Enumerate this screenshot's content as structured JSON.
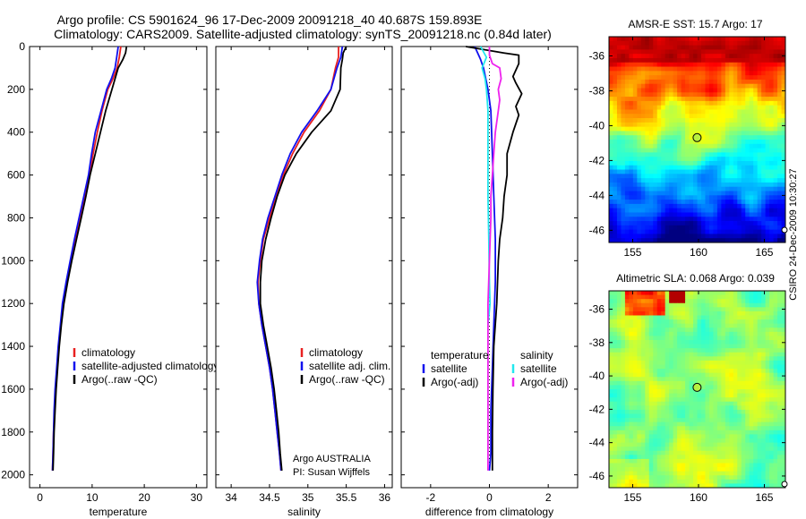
{
  "header": {
    "line1": "Argo profile: CS 5901624_96 17-Dec-2009 20091218_40 40.687S 159.893E",
    "line2": "Climatology: CARS2009. Satellite-adjusted climatology: synTS_20091218.nc (0.84d later)"
  },
  "side_label": "CSIRO 24-Dec-2009 10:30:27",
  "credits": {
    "line1": "Argo AUSTRALIA",
    "line2": "PI: Susan Wijffels"
  },
  "colors": {
    "climatology": "#e82020",
    "satellite": "#1010ee",
    "argo": "#000000",
    "sat_salinity": "#22e8ee",
    "argo_salinity": "#ee22ee"
  },
  "chart_data": [
    {
      "type": "line",
      "xlabel": "temperature",
      "xlim": [
        -2,
        32
      ],
      "ylim": [
        0,
        2060
      ],
      "xticks": [
        0,
        10,
        20,
        30
      ],
      "yticks": [
        0,
        200,
        400,
        600,
        800,
        1000,
        1200,
        1400,
        1600,
        1800,
        2000
      ],
      "legend_placement": "lower-right",
      "series": [
        {
          "name": "climatology",
          "color": "#e82020",
          "points": [
            [
              15.5,
              0
            ],
            [
              15.2,
              50
            ],
            [
              14.8,
              100
            ],
            [
              14.0,
              150
            ],
            [
              13.0,
              200
            ],
            [
              11.9,
              300
            ],
            [
              11.0,
              400
            ],
            [
              10.2,
              500
            ],
            [
              9.5,
              600
            ],
            [
              8.6,
              700
            ],
            [
              7.7,
              800
            ],
            [
              6.8,
              900
            ],
            [
              6.0,
              1000
            ],
            [
              5.2,
              1100
            ],
            [
              4.5,
              1200
            ],
            [
              4.0,
              1300
            ],
            [
              3.6,
              1400
            ],
            [
              3.3,
              1500
            ],
            [
              3.0,
              1600
            ],
            [
              2.8,
              1700
            ],
            [
              2.6,
              1800
            ],
            [
              2.5,
              1900
            ],
            [
              2.4,
              1980
            ]
          ]
        },
        {
          "name": "satellite-adjusted climatology",
          "color": "#1010ee",
          "points": [
            [
              15.0,
              0
            ],
            [
              14.7,
              50
            ],
            [
              14.4,
              100
            ],
            [
              13.7,
              150
            ],
            [
              12.8,
              200
            ],
            [
              11.7,
              300
            ],
            [
              10.6,
              400
            ],
            [
              9.9,
              500
            ],
            [
              9.3,
              600
            ],
            [
              8.4,
              700
            ],
            [
              7.5,
              800
            ],
            [
              6.6,
              900
            ],
            [
              5.8,
              1000
            ],
            [
              5.0,
              1100
            ],
            [
              4.3,
              1200
            ],
            [
              3.9,
              1300
            ],
            [
              3.5,
              1400
            ],
            [
              3.2,
              1500
            ],
            [
              2.9,
              1600
            ],
            [
              2.7,
              1700
            ],
            [
              2.6,
              1800
            ],
            [
              2.5,
              1900
            ],
            [
              2.4,
              1980
            ]
          ]
        },
        {
          "name": "Argo(..raw -QC)",
          "color": "#000000",
          "points": [
            [
              16.6,
              0
            ],
            [
              16.4,
              30
            ],
            [
              15.9,
              60
            ],
            [
              15.0,
              100
            ],
            [
              14.4,
              150
            ],
            [
              13.8,
              200
            ],
            [
              12.6,
              300
            ],
            [
              11.6,
              400
            ],
            [
              10.6,
              500
            ],
            [
              9.6,
              600
            ],
            [
              8.8,
              700
            ],
            [
              7.9,
              800
            ],
            [
              7.0,
              900
            ],
            [
              6.1,
              1000
            ],
            [
              5.3,
              1100
            ],
            [
              4.6,
              1200
            ],
            [
              4.1,
              1300
            ],
            [
              3.7,
              1400
            ],
            [
              3.4,
              1500
            ],
            [
              3.1,
              1600
            ],
            [
              2.9,
              1700
            ],
            [
              2.7,
              1800
            ],
            [
              2.6,
              1900
            ],
            [
              2.5,
              1980
            ]
          ]
        }
      ]
    },
    {
      "type": "line",
      "xlabel": "salinity",
      "xlim": [
        33.8,
        36.1
      ],
      "ylim": [
        0,
        2060
      ],
      "xticks": [
        34,
        34.5,
        35,
        35.5,
        36
      ],
      "legend_placement": "lower-right",
      "series": [
        {
          "name": "climatology",
          "color": "#e82020",
          "points": [
            [
              35.4,
              0
            ],
            [
              35.4,
              50
            ],
            [
              35.36,
              100
            ],
            [
              35.3,
              200
            ],
            [
              35.15,
              300
            ],
            [
              34.95,
              400
            ],
            [
              34.8,
              500
            ],
            [
              34.68,
              600
            ],
            [
              34.58,
              700
            ],
            [
              34.5,
              800
            ],
            [
              34.42,
              900
            ],
            [
              34.38,
              1000
            ],
            [
              34.35,
              1100
            ],
            [
              34.36,
              1200
            ],
            [
              34.4,
              1300
            ],
            [
              34.45,
              1400
            ],
            [
              34.5,
              1500
            ],
            [
              34.54,
              1600
            ],
            [
              34.57,
              1700
            ],
            [
              34.6,
              1800
            ],
            [
              34.63,
              1900
            ],
            [
              34.65,
              1980
            ]
          ]
        },
        {
          "name": "satellite adj. clim.",
          "color": "#1010ee",
          "points": [
            [
              35.45,
              0
            ],
            [
              35.43,
              50
            ],
            [
              35.38,
              100
            ],
            [
              35.3,
              200
            ],
            [
              35.12,
              300
            ],
            [
              34.92,
              400
            ],
            [
              34.77,
              500
            ],
            [
              34.66,
              600
            ],
            [
              34.57,
              700
            ],
            [
              34.48,
              800
            ],
            [
              34.41,
              900
            ],
            [
              34.37,
              1000
            ],
            [
              34.34,
              1100
            ],
            [
              34.36,
              1200
            ],
            [
              34.4,
              1300
            ],
            [
              34.45,
              1400
            ],
            [
              34.5,
              1500
            ],
            [
              34.54,
              1600
            ],
            [
              34.57,
              1700
            ],
            [
              34.6,
              1800
            ],
            [
              34.63,
              1900
            ],
            [
              34.65,
              1980
            ]
          ]
        },
        {
          "name": "Argo(..raw -QC)",
          "color": "#000000",
          "points": [
            [
              35.5,
              0
            ],
            [
              35.46,
              30
            ],
            [
              35.45,
              60
            ],
            [
              35.43,
              100
            ],
            [
              35.42,
              200
            ],
            [
              35.3,
              300
            ],
            [
              35.05,
              400
            ],
            [
              34.85,
              500
            ],
            [
              34.7,
              600
            ],
            [
              34.6,
              700
            ],
            [
              34.52,
              800
            ],
            [
              34.45,
              900
            ],
            [
              34.4,
              1000
            ],
            [
              34.38,
              1100
            ],
            [
              34.38,
              1200
            ],
            [
              34.42,
              1300
            ],
            [
              34.47,
              1400
            ],
            [
              34.52,
              1500
            ],
            [
              34.56,
              1600
            ],
            [
              34.59,
              1700
            ],
            [
              34.62,
              1800
            ],
            [
              34.64,
              1900
            ],
            [
              34.66,
              1980
            ]
          ]
        }
      ]
    },
    {
      "type": "line",
      "xlabel": "difference from climatology",
      "xlim": [
        -3,
        3
      ],
      "ylim": [
        0,
        2060
      ],
      "xticks": [
        -2,
        0,
        2
      ],
      "legend_placement": "lower",
      "legend_groups": [
        {
          "title": "temperature",
          "entries": [
            "satellite",
            "Argo(-adj)"
          ]
        },
        {
          "title": "salinity",
          "entries": [
            "satellite",
            "Argo(-adj)"
          ]
        }
      ],
      "series": [
        {
          "name": "temperature satellite",
          "color": "#1010ee",
          "points": [
            [
              -0.5,
              0
            ],
            [
              -0.3,
              60
            ],
            [
              -0.2,
              100
            ],
            [
              -0.05,
              200
            ],
            [
              0.05,
              300
            ],
            [
              0.1,
              500
            ],
            [
              0.15,
              700
            ],
            [
              0.2,
              900
            ],
            [
              0.2,
              1100
            ],
            [
              0.15,
              1300
            ],
            [
              0.1,
              1500
            ],
            [
              0.05,
              1700
            ],
            [
              0.05,
              1900
            ],
            [
              0.0,
              1980
            ]
          ]
        },
        {
          "name": "temperature Argo(-adj)",
          "color": "#000000",
          "points": [
            [
              -0.8,
              0
            ],
            [
              0.5,
              30
            ],
            [
              1.0,
              40
            ],
            [
              1.0,
              80
            ],
            [
              0.8,
              140
            ],
            [
              0.9,
              170
            ],
            [
              1.1,
              220
            ],
            [
              0.9,
              280
            ],
            [
              1.0,
              320
            ],
            [
              0.8,
              400
            ],
            [
              0.6,
              500
            ],
            [
              0.6,
              600
            ],
            [
              0.5,
              700
            ],
            [
              0.45,
              800
            ],
            [
              0.35,
              900
            ],
            [
              0.3,
              1000
            ],
            [
              0.25,
              1200
            ],
            [
              0.15,
              1400
            ],
            [
              0.12,
              1600
            ],
            [
              0.1,
              1800
            ],
            [
              0.1,
              1980
            ]
          ]
        },
        {
          "name": "salinity satellite",
          "color": "#22e8ee",
          "points": [
            [
              -0.3,
              0
            ],
            [
              -0.1,
              50
            ],
            [
              -0.25,
              100
            ],
            [
              -0.15,
              150
            ],
            [
              -0.1,
              200
            ],
            [
              -0.05,
              300
            ],
            [
              -0.05,
              500
            ],
            [
              -0.05,
              700
            ],
            [
              -0.02,
              900
            ],
            [
              0.0,
              1100
            ],
            [
              0.02,
              1200
            ],
            [
              -0.05,
              1300
            ]
          ]
        },
        {
          "name": "salinity Argo(-adj)",
          "color": "#ee22ee",
          "points": [
            [
              0.0,
              0
            ],
            [
              0.0,
              40
            ],
            [
              0.1,
              80
            ],
            [
              0.35,
              100
            ],
            [
              0.4,
              150
            ],
            [
              0.3,
              200
            ],
            [
              0.35,
              250
            ],
            [
              0.3,
              300
            ],
            [
              0.2,
              400
            ],
            [
              0.15,
              500
            ],
            [
              0.1,
              600
            ],
            [
              0.05,
              700
            ],
            [
              0.05,
              800
            ],
            [
              0.0,
              1000
            ],
            [
              -0.05,
              1200
            ],
            [
              -0.05,
              1400
            ],
            [
              -0.05,
              1600
            ],
            [
              -0.05,
              1800
            ],
            [
              -0.05,
              1980
            ]
          ]
        }
      ]
    },
    {
      "type": "heatmap",
      "title": "AMSR-E SST: 15.7 Argo: 17",
      "xlim": [
        153.2,
        166.6
      ],
      "ylim": [
        -46.7,
        -34.9
      ],
      "xticks": [
        155,
        160,
        165
      ],
      "yticks": [
        -36,
        -38,
        -40,
        -42,
        -44,
        -46
      ],
      "colormap": "jet",
      "argo_position": [
        159.893,
        -40.687
      ]
    },
    {
      "type": "heatmap",
      "title": "Altimetric SLA: 0.068 Argo: 0.039",
      "xlim": [
        153.2,
        166.6
      ],
      "ylim": [
        -46.7,
        -34.9
      ],
      "xticks": [
        155,
        160,
        165
      ],
      "yticks": [
        -36,
        -38,
        -40,
        -42,
        -44,
        -46
      ],
      "colormap": "jet",
      "argo_position": [
        159.893,
        -40.687
      ]
    }
  ]
}
